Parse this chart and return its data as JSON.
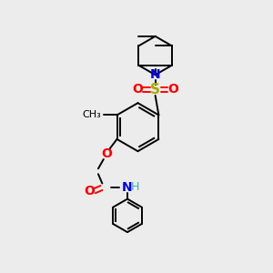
{
  "bg_color": "#ececec",
  "black": "#000000",
  "blue": "#0000ee",
  "red": "#ff0000",
  "sulfur": "#aaaa00",
  "nh_color": "#44aaaa",
  "bond_lw": 1.4,
  "font_size": 10,
  "fig_w": 3.0,
  "fig_h": 3.0,
  "dpi": 100,
  "xlim": [
    0,
    10
  ],
  "ylim": [
    0,
    10
  ]
}
